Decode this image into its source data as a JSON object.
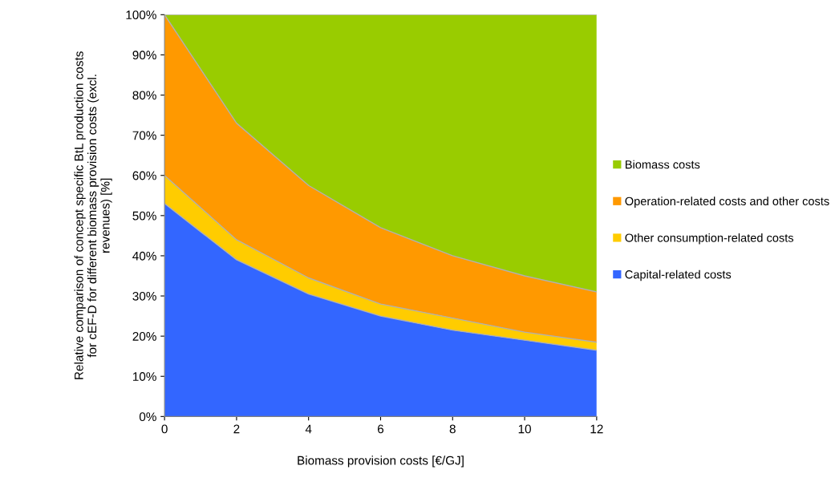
{
  "chart_data": {
    "type": "area",
    "stacked": true,
    "xlabel": "Biomass provision costs [€/GJ]",
    "ylabel": "Relative comparison of concept specific BtL production costs for cEF-D for different biomass provision costs (excl. revenues) [%]",
    "x": [
      0,
      2,
      4,
      6,
      8,
      10,
      12
    ],
    "series": [
      {
        "name": "Capital-related costs",
        "color": "#3366ff",
        "values": [
          53,
          39,
          30.5,
          25,
          21.5,
          19,
          16.5
        ]
      },
      {
        "name": "Other consumption-related costs",
        "color": "#ffcc00",
        "values": [
          7,
          5,
          4,
          3,
          3,
          2,
          2
        ]
      },
      {
        "name": "Operation-related costs and other costs",
        "color": "#ff9900",
        "values": [
          40,
          29,
          23,
          19,
          15.5,
          14,
          12.5
        ]
      },
      {
        "name": "Biomass costs",
        "color": "#99cc00",
        "values": [
          0,
          27,
          42.5,
          53,
          60,
          65,
          69
        ]
      }
    ],
    "xlim": [
      0,
      12
    ],
    "xticks": [
      0,
      2,
      4,
      6,
      8,
      10,
      12
    ],
    "ylim": [
      0,
      100
    ],
    "yticks": [
      {
        "value": 0,
        "label": "0%"
      },
      {
        "value": 10,
        "label": "10%"
      },
      {
        "value": 20,
        "label": "20%"
      },
      {
        "value": 30,
        "label": "30%"
      },
      {
        "value": 40,
        "label": "40%"
      },
      {
        "value": 50,
        "label": "50%"
      },
      {
        "value": 60,
        "label": "60%"
      },
      {
        "value": 70,
        "label": "70%"
      },
      {
        "value": 80,
        "label": "80%"
      },
      {
        "value": 90,
        "label": "90%"
      },
      {
        "value": 100,
        "label": "100%"
      }
    ],
    "grid": false,
    "legend": "right"
  }
}
